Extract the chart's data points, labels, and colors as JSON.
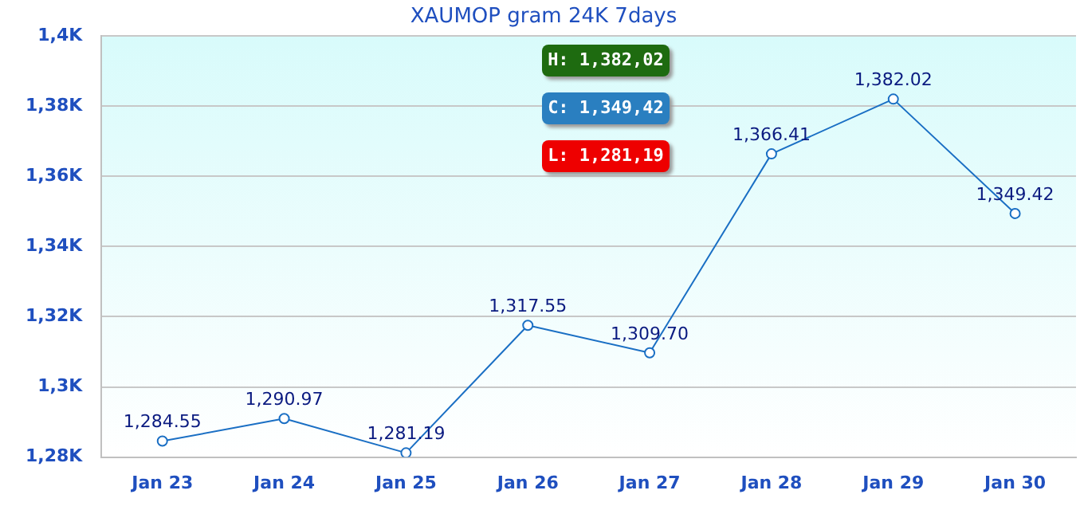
{
  "chart_data": {
    "type": "line",
    "title": "XAUMOP gram 24K 7days",
    "categories": [
      "Jan 23",
      "Jan 24",
      "Jan 25",
      "Jan 26",
      "Jan 27",
      "Jan 28",
      "Jan 29",
      "Jan 30"
    ],
    "series": [
      {
        "color": "#1a6fc4",
        "values": [
          1284.55,
          1290.97,
          1281.19,
          1317.55,
          1309.7,
          1366.41,
          1382.02,
          1349.42
        ],
        "value_labels": [
          "1,284.55",
          "1,290.97",
          "1,281.19",
          "1,317.55",
          "1,309.70",
          "1,366.41",
          "1,382.02",
          "1,349.42"
        ]
      }
    ],
    "ylim": [
      1280,
      1400
    ],
    "yticks": [
      {
        "value": 1280,
        "label": "1,28K"
      },
      {
        "value": 1300,
        "label": "1,3K"
      },
      {
        "value": 1320,
        "label": "1,32K"
      },
      {
        "value": 1340,
        "label": "1,34K"
      },
      {
        "value": 1360,
        "label": "1,36K"
      },
      {
        "value": 1380,
        "label": "1,38K"
      },
      {
        "value": 1400,
        "label": "1,4K"
      }
    ],
    "grid": "y",
    "marker": "circle",
    "line_style": "solid",
    "legend": false,
    "annotations": [
      "H: 1,382,02",
      "C: 1,349,42",
      "L: 1,281,19"
    ]
  }
}
